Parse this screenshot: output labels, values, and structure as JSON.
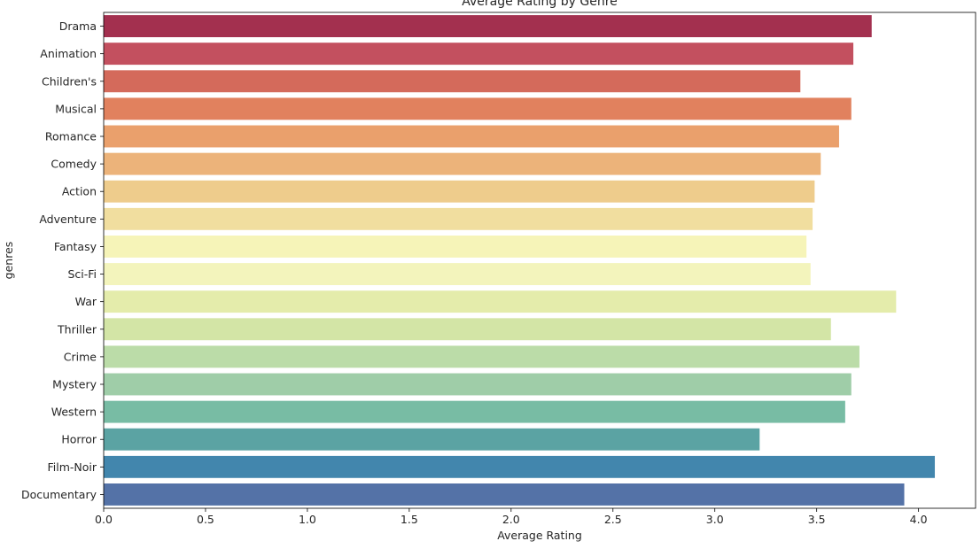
{
  "chart_data": {
    "type": "bar",
    "orientation": "horizontal",
    "title": "Average Rating by Genre",
    "xlabel": "Average Rating",
    "ylabel": "genres",
    "xlim": [
      0,
      4.28
    ],
    "xticks": [
      0.0,
      0.5,
      1.0,
      1.5,
      2.0,
      2.5,
      3.0,
      3.5,
      4.0
    ],
    "xtick_labels": [
      "0.0",
      "0.5",
      "1.0",
      "1.5",
      "2.0",
      "2.5",
      "3.0",
      "3.5",
      "4.0"
    ],
    "grid": false,
    "categories": [
      "Drama",
      "Animation",
      "Children's",
      "Musical",
      "Romance",
      "Comedy",
      "Action",
      "Adventure",
      "Fantasy",
      "Sci-Fi",
      "War",
      "Thriller",
      "Crime",
      "Mystery",
      "Western",
      "Horror",
      "Film-Noir",
      "Documentary"
    ],
    "values": [
      3.77,
      3.68,
      3.42,
      3.67,
      3.61,
      3.52,
      3.49,
      3.48,
      3.45,
      3.47,
      3.89,
      3.57,
      3.71,
      3.67,
      3.64,
      3.22,
      4.08,
      3.93
    ],
    "colors": [
      "#a3304f",
      "#c3505f",
      "#d46a5b",
      "#e1815e",
      "#eaa06c",
      "#ecb37a",
      "#eecc8c",
      "#f1de9f",
      "#f6f4b8",
      "#f3f4bc",
      "#e4ecab",
      "#d3e5a6",
      "#bbdca8",
      "#9fcda8",
      "#78bca4",
      "#5ba3a3",
      "#4286ad",
      "#5472a7"
    ]
  }
}
